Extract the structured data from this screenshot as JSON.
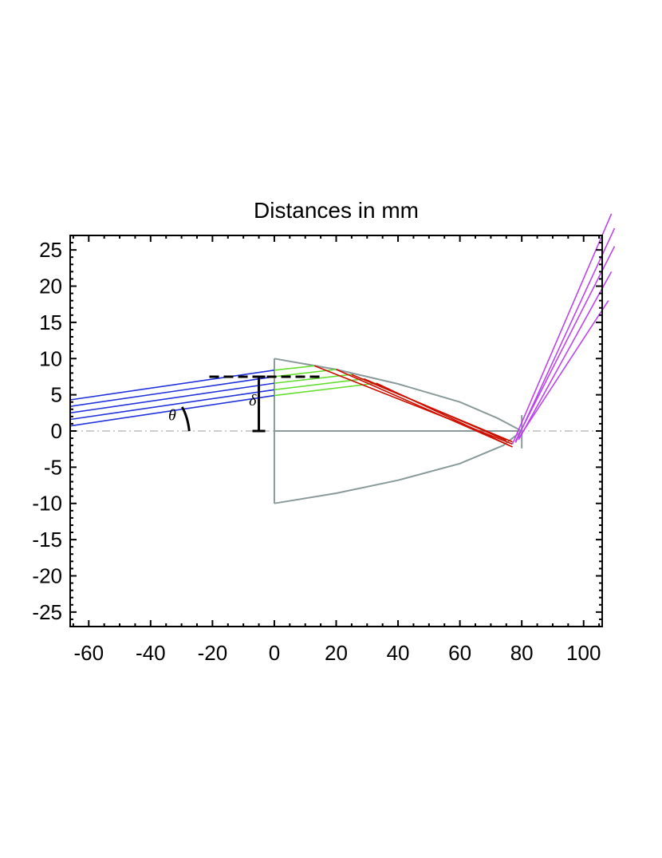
{
  "chart_data": {
    "type": "line",
    "title": "Distances in mm",
    "xlabel": "",
    "ylabel": "",
    "xlim": [
      -66,
      106
    ],
    "ylim": [
      -27,
      27
    ],
    "xticks": [
      -60,
      -40,
      -20,
      0,
      20,
      40,
      60,
      80,
      100
    ],
    "yticks": [
      25,
      20,
      15,
      10,
      5,
      0,
      -5,
      -10,
      -15,
      -20,
      -25
    ],
    "colors": {
      "incoming": "#2233dd",
      "inside": "#66dd33",
      "reflected": "#cc1100",
      "outgoing": "#bb44ee",
      "lens": "#8a9a9a",
      "axis": "#b0b0b0",
      "annotation": "#000000"
    },
    "lens": {
      "flat_face_x": 0,
      "half_height": 10,
      "vertex_x": 80,
      "curve_points": [
        [
          0,
          10
        ],
        [
          20,
          8.5
        ],
        [
          40,
          6.5
        ],
        [
          60,
          4
        ],
        [
          72,
          1.8
        ],
        [
          80,
          0
        ]
      ],
      "lower_curve_points": [
        [
          0,
          -10
        ],
        [
          20,
          -8.6
        ],
        [
          40,
          -6.8
        ],
        [
          60,
          -4.5
        ],
        [
          74,
          -2
        ],
        [
          80,
          0
        ]
      ],
      "axis_segment": [
        0,
        80
      ]
    },
    "series": [
      {
        "name": "incoming rays",
        "color": "#2233dd",
        "count": 5,
        "segments": [
          [
            [
              -66,
              4.3
            ],
            [
              0,
              8.4
            ]
          ],
          [
            [
              -66,
              3.4
            ],
            [
              0,
              7.5
            ]
          ],
          [
            [
              -66,
              2.5
            ],
            [
              0,
              6.6
            ]
          ],
          [
            [
              -66,
              1.6
            ],
            [
              0,
              5.7
            ]
          ],
          [
            [
              -66,
              0.7
            ],
            [
              0,
              4.9
            ]
          ]
        ]
      },
      {
        "name": "refracted rays in lens",
        "color": "#66dd33",
        "count": 5,
        "segments": [
          [
            [
              0,
              8.4
            ],
            [
              13,
              9.0
            ]
          ],
          [
            [
              0,
              7.5
            ],
            [
              20,
              8.5
            ]
          ],
          [
            [
              0,
              6.6
            ],
            [
              25,
              7.8
            ]
          ],
          [
            [
              0,
              5.7
            ],
            [
              29,
              7.2
            ]
          ],
          [
            [
              0,
              4.9
            ],
            [
              33,
              6.6
            ]
          ]
        ]
      },
      {
        "name": "reflected rays",
        "color": "#cc1100",
        "count": 5,
        "segments": [
          [
            [
              13,
              9.0
            ],
            [
              77,
              -1.8
            ]
          ],
          [
            [
              20,
              8.5
            ],
            [
              76,
              -2.0
            ]
          ],
          [
            [
              25,
              7.8
            ],
            [
              77,
              -1.5
            ]
          ],
          [
            [
              29,
              7.2
            ],
            [
              75,
              -1.3
            ]
          ],
          [
            [
              33,
              6.6
            ],
            [
              77,
              -2.2
            ]
          ]
        ]
      },
      {
        "name": "output rays",
        "color": "#bb44ee",
        "count": 5,
        "segments": [
          [
            [
              77,
              -1.8
            ],
            [
              109,
              30
            ]
          ],
          [
            [
              78,
              -1.6
            ],
            [
              110,
              28
            ]
          ],
          [
            [
              78,
              -1.4
            ],
            [
              110,
              25.5
            ]
          ],
          [
            [
              79,
              -1.2
            ],
            [
              109,
              22
            ]
          ],
          [
            [
              79,
              -1.0
            ],
            [
              108,
              18
            ]
          ]
        ]
      }
    ],
    "annotations": [
      {
        "label": "θ",
        "meaning": "incidence angle",
        "at": [
          -33,
          1.5
        ]
      },
      {
        "label": "δ",
        "meaning": "ray height offset",
        "at": [
          -7,
          3.5
        ]
      }
    ],
    "delta_bar": {
      "x": -5,
      "y_from": 0,
      "y_to": 7.5
    },
    "dashed_reference": {
      "y": 7.5,
      "x_from": -21,
      "x_to": 16
    }
  }
}
